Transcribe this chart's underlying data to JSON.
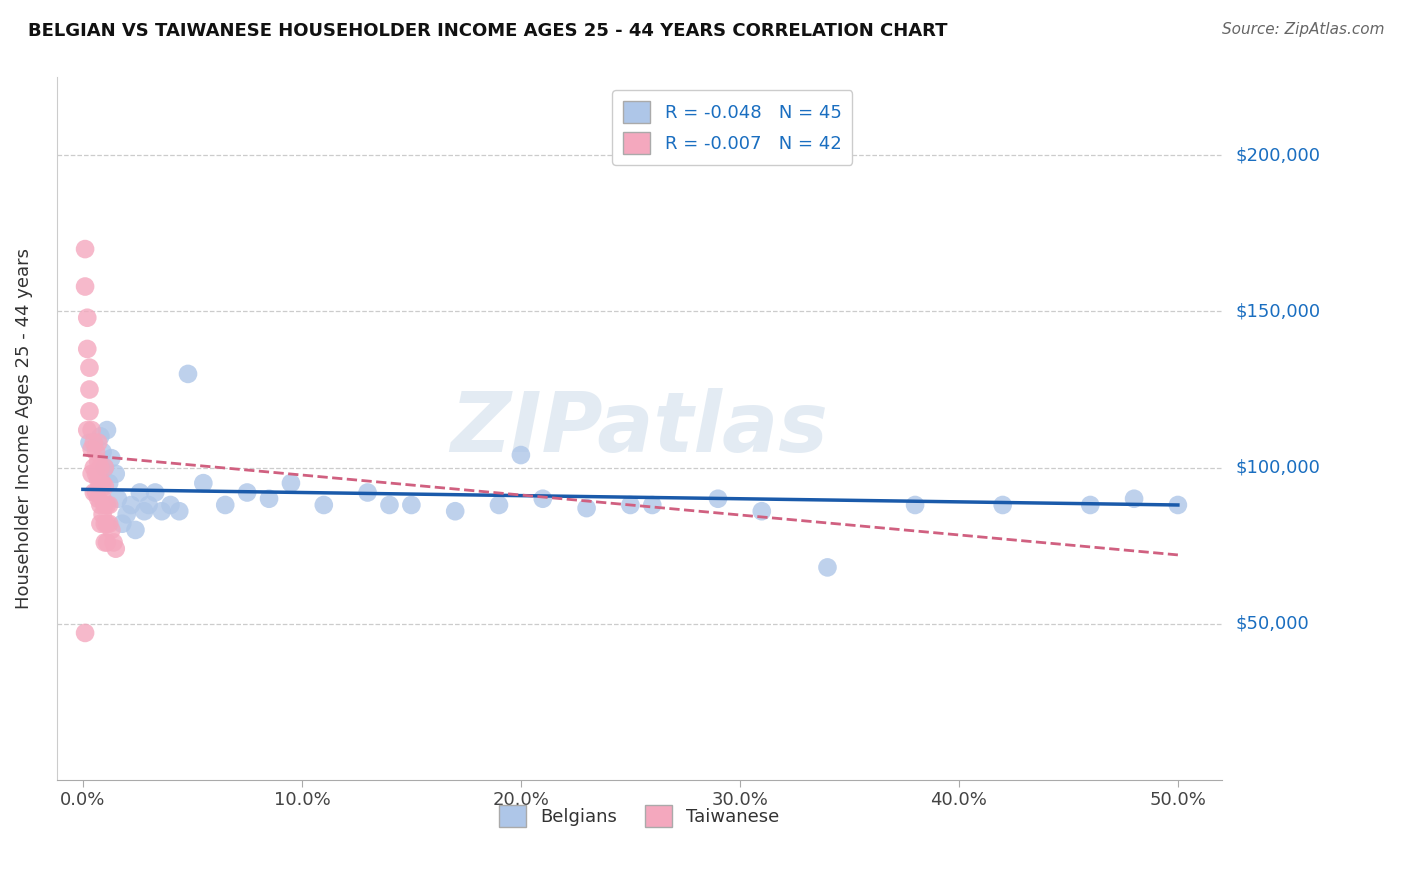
{
  "title": "BELGIAN VS TAIWANESE HOUSEHOLDER INCOME AGES 25 - 44 YEARS CORRELATION CHART",
  "source": "Source: ZipAtlas.com",
  "ylabel": "Householder Income Ages 25 - 44 years",
  "xlabel_ticks": [
    "0.0%",
    "10.0%",
    "20.0%",
    "30.0%",
    "40.0%",
    "50.0%"
  ],
  "xlabel_vals": [
    0.0,
    0.1,
    0.2,
    0.3,
    0.4,
    0.5
  ],
  "ylabel_ticks": [
    "$50,000",
    "$100,000",
    "$150,000",
    "$200,000"
  ],
  "ylabel_vals": [
    50000,
    100000,
    150000,
    200000
  ],
  "ylim": [
    0,
    225000
  ],
  "xlim": [
    -0.012,
    0.52
  ],
  "belgian_color": "#aec6e8",
  "taiwanese_color": "#f4a8be",
  "belgian_line_color": "#1a5aaa",
  "taiwanese_line_color": "#d06080",
  "watermark": "ZIPatlas",
  "belgians_x": [
    0.003,
    0.008,
    0.009,
    0.01,
    0.011,
    0.012,
    0.013,
    0.015,
    0.016,
    0.018,
    0.02,
    0.022,
    0.024,
    0.026,
    0.028,
    0.03,
    0.033,
    0.036,
    0.04,
    0.044,
    0.048,
    0.055,
    0.065,
    0.075,
    0.085,
    0.095,
    0.11,
    0.13,
    0.15,
    0.17,
    0.19,
    0.21,
    0.23,
    0.26,
    0.29,
    0.31,
    0.34,
    0.38,
    0.42,
    0.46,
    0.48,
    0.5,
    0.14,
    0.2,
    0.25
  ],
  "belgians_y": [
    108000,
    110000,
    105000,
    100000,
    112000,
    95000,
    103000,
    98000,
    90000,
    82000,
    85000,
    88000,
    80000,
    92000,
    86000,
    88000,
    92000,
    86000,
    88000,
    86000,
    130000,
    95000,
    88000,
    92000,
    90000,
    95000,
    88000,
    92000,
    88000,
    86000,
    88000,
    90000,
    87000,
    88000,
    90000,
    86000,
    68000,
    88000,
    88000,
    88000,
    90000,
    88000,
    88000,
    104000,
    88000
  ],
  "taiwanese_x": [
    0.001,
    0.001,
    0.002,
    0.002,
    0.002,
    0.003,
    0.003,
    0.003,
    0.004,
    0.004,
    0.004,
    0.005,
    0.005,
    0.005,
    0.006,
    0.006,
    0.006,
    0.007,
    0.007,
    0.007,
    0.007,
    0.008,
    0.008,
    0.008,
    0.008,
    0.009,
    0.009,
    0.009,
    0.01,
    0.01,
    0.01,
    0.01,
    0.01,
    0.011,
    0.011,
    0.011,
    0.012,
    0.012,
    0.013,
    0.014,
    0.015,
    0.001
  ],
  "taiwanese_y": [
    170000,
    158000,
    148000,
    138000,
    112000,
    132000,
    125000,
    118000,
    112000,
    106000,
    98000,
    108000,
    100000,
    92000,
    98000,
    105000,
    92000,
    108000,
    102000,
    96000,
    90000,
    100000,
    95000,
    88000,
    82000,
    95000,
    90000,
    85000,
    100000,
    94000,
    88000,
    82000,
    76000,
    88000,
    82000,
    76000,
    88000,
    82000,
    80000,
    76000,
    74000,
    47000
  ],
  "belgian_trend_x": [
    0.0,
    0.5
  ],
  "belgian_trend_y": [
    93000,
    88000
  ],
  "taiwanese_trend_x": [
    0.0,
    0.5
  ],
  "taiwanese_trend_y": [
    104000,
    72000
  ]
}
